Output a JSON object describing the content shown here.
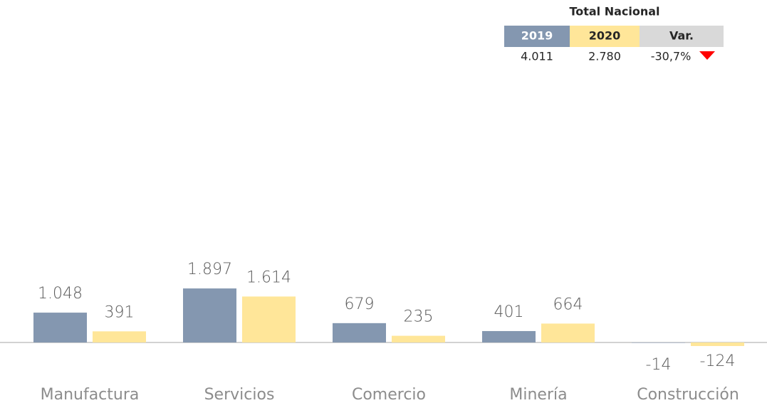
{
  "chart_data": {
    "type": "bar",
    "categories": [
      "Manufactura",
      "Servicios",
      "Comercio",
      "Minería",
      "Construcción"
    ],
    "series": [
      {
        "name": "2019",
        "color": "#8497b0",
        "values": [
          1048,
          1897,
          679,
          401,
          -14
        ],
        "value_labels": [
          "1.048",
          "1.897",
          "679",
          "401",
          "-14"
        ]
      },
      {
        "name": "2020",
        "color": "#ffe699",
        "values": [
          391,
          1614,
          235,
          664,
          -124
        ],
        "value_labels": [
          "391",
          "1.614",
          "235",
          "664",
          "-124"
        ]
      }
    ],
    "ylim": [
      -1000,
      3000
    ],
    "summary": {
      "title": "Total Nacional",
      "var_header": "Var.",
      "values": [
        "4.011",
        "2.780",
        "-30,7%"
      ]
    }
  }
}
